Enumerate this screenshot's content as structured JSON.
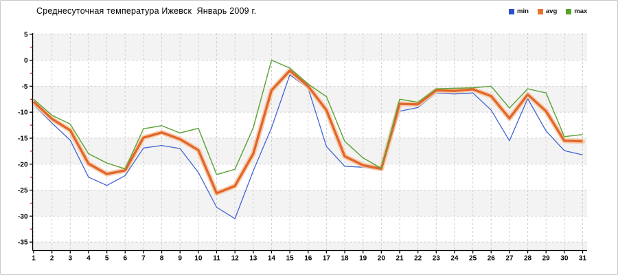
{
  "title": "Среднесуточная температура Ижевск  Январь 2009 г.",
  "legend": {
    "items": [
      {
        "id": "min",
        "label": "min",
        "color": "#2a4fd0"
      },
      {
        "id": "avg",
        "label": "avg",
        "color": "#e8732e"
      },
      {
        "id": "max",
        "label": "max",
        "color": "#55a427"
      }
    ]
  },
  "chart_data": {
    "type": "line",
    "title": "Среднесуточная температура Ижевск  Январь 2009 г.",
    "xlabel": "",
    "ylabel": "",
    "x": [
      1,
      2,
      3,
      4,
      5,
      6,
      7,
      8,
      9,
      10,
      11,
      12,
      13,
      14,
      15,
      16,
      17,
      18,
      19,
      20,
      21,
      22,
      23,
      24,
      25,
      26,
      27,
      28,
      29,
      30,
      31
    ],
    "y_major_ticks": [
      5,
      0,
      -5,
      -10,
      -15,
      -20,
      -25,
      -30,
      -35
    ],
    "y_minor_ticks": [
      2.5,
      -2.5,
      -7.5,
      -12.5,
      -17.5,
      -22.5,
      -27.5,
      -32.5
    ],
    "ylim": [
      -36.6,
      5.2
    ],
    "grid": true,
    "legend_position": "top-right",
    "series": [
      {
        "name": "min",
        "color": "#3f63d2",
        "width": 1.3,
        "values": [
          -8.6,
          -12.1,
          -15.4,
          -22.5,
          -24.1,
          -22.2,
          -16.9,
          -16.4,
          -17.0,
          -21.6,
          -28.3,
          -30.5,
          -21.3,
          -13.0,
          -2.8,
          -5.4,
          -16.6,
          -20.4,
          -20.6,
          -21.0,
          -9.8,
          -9.1,
          -6.3,
          -6.5,
          -6.3,
          -9.6,
          -15.5,
          -7.4,
          -13.6,
          -17.4,
          -18.2
        ]
      },
      {
        "name": "avg",
        "color": "#e2662c",
        "width": 3.4,
        "halo_color": "#f6c9a5",
        "halo_width": 7.5,
        "values": [
          -8.0,
          -11.3,
          -13.5,
          -19.9,
          -21.9,
          -21.2,
          -14.9,
          -13.9,
          -15.2,
          -17.3,
          -25.6,
          -24.2,
          -18.0,
          -5.8,
          -2.0,
          -5.0,
          -9.6,
          -18.5,
          -20.2,
          -20.9,
          -8.4,
          -8.5,
          -5.8,
          -5.9,
          -5.6,
          -6.9,
          -11.2,
          -6.6,
          -9.8,
          -15.5,
          -15.6
        ]
      },
      {
        "name": "max",
        "color": "#61a53c",
        "width": 1.5,
        "values": [
          -7.5,
          -10.6,
          -12.3,
          -18.0,
          -19.8,
          -20.9,
          -13.2,
          -12.6,
          -14.0,
          -13.1,
          -22.0,
          -21.0,
          -13.0,
          0.0,
          -1.5,
          -4.6,
          -7.0,
          -15.6,
          -18.8,
          -20.8,
          -7.5,
          -8.1,
          -5.5,
          -5.4,
          -5.3,
          -5.0,
          -9.2,
          -5.5,
          -6.3,
          -14.7,
          -14.3
        ]
      }
    ],
    "colors": {
      "grid": "#cfcfcf",
      "band": "#f3f3f3",
      "axis": "#000000",
      "minor_tick": "#cc2222"
    }
  }
}
